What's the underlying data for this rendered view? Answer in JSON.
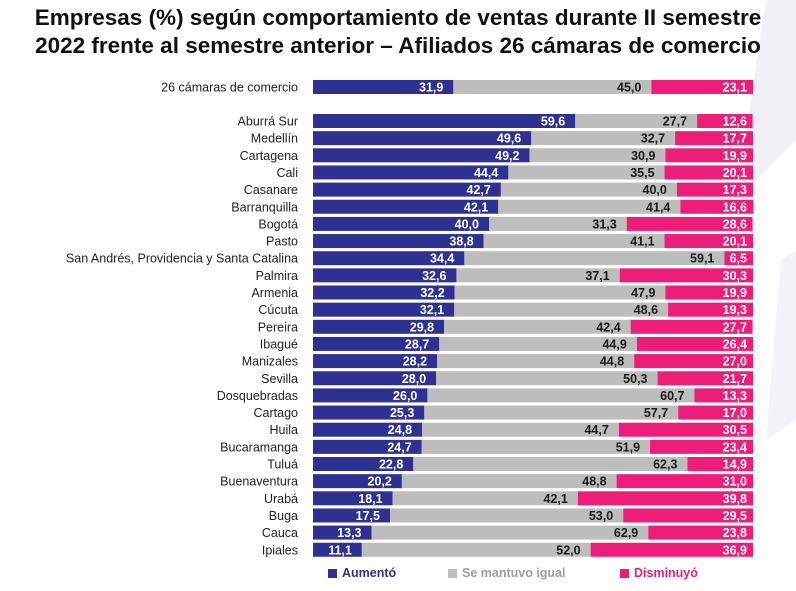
{
  "title": {
    "line1": "Empresas (%) según comportamiento de ventas durante II semestre",
    "line2": "2022 frente al semestre anterior – Afiliados 26 cámaras de comercio"
  },
  "colors": {
    "aumento": "#2E3192",
    "igual": "#BDBDBD",
    "disminuyo": "#EC1E79",
    "title": "#111111",
    "decor": "#F1F0F6"
  },
  "legend": [
    {
      "label": "Aumentó",
      "color": "#2E3192",
      "text_color": "#2E3192"
    },
    {
      "label": "Se mantuvo igual",
      "color": "#BDBDBD",
      "text_color": "#9E9E9E"
    },
    {
      "label": "Disminuyó",
      "color": "#EC1E79",
      "text_color": "#EC1E79"
    }
  ],
  "chart_data": {
    "type": "bar",
    "orientation": "horizontal",
    "stacked": true,
    "title": "Empresas (%) según comportamiento de ventas durante II semestre 2022 frente al semestre anterior – Afiliados 26 cámaras de comercio",
    "xlim": [
      0,
      100
    ],
    "series_names": [
      "Aumentó",
      "Se mantuvo igual",
      "Disminuyó"
    ],
    "total": {
      "category": "26 cámaras de comercio",
      "values": [
        "31,9",
        "45,0",
        "23,1"
      ]
    },
    "rows": [
      {
        "category": "Aburrá Sur",
        "values": [
          "59,6",
          "27,7",
          "12,6"
        ]
      },
      {
        "category": "Medellín",
        "values": [
          "49,6",
          "32,7",
          "17,7"
        ]
      },
      {
        "category": "Cartagena",
        "values": [
          "49,2",
          "30,9",
          "19,9"
        ]
      },
      {
        "category": "Cali",
        "values": [
          "44,4",
          "35,5",
          "20,1"
        ]
      },
      {
        "category": "Casanare",
        "values": [
          "42,7",
          "40,0",
          "17,3"
        ]
      },
      {
        "category": "Barranquilla",
        "values": [
          "42,1",
          "41,4",
          "16,6"
        ]
      },
      {
        "category": "Bogotá",
        "values": [
          "40,0",
          "31,3",
          "28,6"
        ]
      },
      {
        "category": "Pasto",
        "values": [
          "38,8",
          "41,1",
          "20,1"
        ]
      },
      {
        "category": "San Andrés, Providencia y Santa Catalina",
        "values": [
          "34,4",
          "59,1",
          "6,5"
        ]
      },
      {
        "category": "Palmira",
        "values": [
          "32,6",
          "37,1",
          "30,3"
        ]
      },
      {
        "category": "Armenia",
        "values": [
          "32,2",
          "47,9",
          "19,9"
        ]
      },
      {
        "category": "Cúcuta",
        "values": [
          "32,1",
          "48,6",
          "19,3"
        ]
      },
      {
        "category": "Pereira",
        "values": [
          "29,8",
          "42,4",
          "27,7"
        ]
      },
      {
        "category": "Ibagué",
        "values": [
          "28,7",
          "44,9",
          "26,4"
        ]
      },
      {
        "category": "Manizales",
        "values": [
          "28,2",
          "44,8",
          "27,0"
        ]
      },
      {
        "category": "Sevilla",
        "values": [
          "28,0",
          "50,3",
          "21,7"
        ]
      },
      {
        "category": "Dosquebradas",
        "values": [
          "26,0",
          "60,7",
          "13,3"
        ]
      },
      {
        "category": "Cartago",
        "values": [
          "25,3",
          "57,7",
          "17,0"
        ]
      },
      {
        "category": "Huila",
        "values": [
          "24,8",
          "44,7",
          "30,5"
        ]
      },
      {
        "category": "Bucaramanga",
        "values": [
          "24,7",
          "51,9",
          "23,4"
        ]
      },
      {
        "category": "Tuluá",
        "values": [
          "22,8",
          "62,3",
          "14,9"
        ]
      },
      {
        "category": "Buenaventura",
        "values": [
          "20,2",
          "48,8",
          "31,0"
        ]
      },
      {
        "category": "Urabá",
        "values": [
          "18,1",
          "42,1",
          "39,8"
        ]
      },
      {
        "category": "Buga",
        "values": [
          "17,5",
          "53,0",
          "29,5"
        ]
      },
      {
        "category": "Cauca",
        "values": [
          "13,3",
          "62,9",
          "23,8"
        ]
      },
      {
        "category": "Ipiales",
        "values": [
          "11,1",
          "52,0",
          "36,9"
        ]
      }
    ]
  }
}
